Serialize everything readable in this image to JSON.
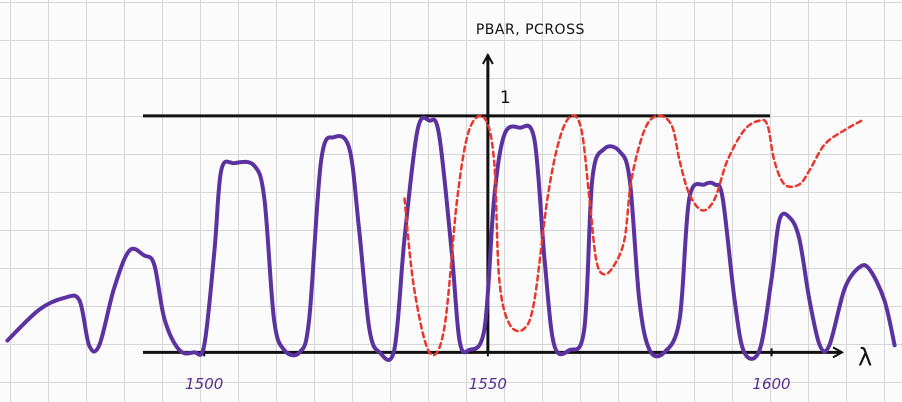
{
  "chart_data": {
    "type": "line",
    "y_label": "PBAR, PCROSS",
    "x_label": "λ",
    "xlim": [
      1464,
      1623
    ],
    "ylim": [
      -0.21,
      1.49
    ],
    "xticks": [
      1500,
      1550,
      1600
    ],
    "yticks": [
      1
    ],
    "series": [
      {
        "color": "#5b32a0",
        "style": "solid",
        "x": [
          1465.3,
          1470.9,
          1475.3,
          1478.0,
          1479.7,
          1481.5,
          1484.1,
          1486.8,
          1489.4,
          1491.2,
          1493.0,
          1495.6,
          1498.2,
          1500.0,
          1501.8,
          1503.0,
          1505.3,
          1508.8,
          1510.6,
          1512.3,
          1514.1,
          1516.8,
          1518.5,
          1520.6,
          1522.9,
          1525.6,
          1527.3,
          1529.1,
          1530.9,
          1533.5,
          1535.3,
          1537.6,
          1539.7,
          1541.4,
          1543.6,
          1545.0,
          1546.7,
          1549.4,
          1551.1,
          1552.9,
          1555.6,
          1558.2,
          1560.0,
          1561.7,
          1564.4,
          1567.0,
          1568.4,
          1570.5,
          1573.2,
          1575.0,
          1576.7,
          1578.5,
          1581.1,
          1583.8,
          1585.5,
          1588.2,
          1590.0,
          1591.4,
          1593.5,
          1595.2,
          1597.9,
          1600.0,
          1601.4,
          1603.2,
          1604.9,
          1606.7,
          1608.5,
          1610.2,
          1612.9,
          1615.5,
          1617.3,
          1619.9,
          1621.7
        ],
        "values": [
          0.05,
          0.18,
          0.23,
          0.22,
          0.03,
          0.03,
          0.27,
          0.43,
          0.41,
          0.37,
          0.14,
          0.01,
          0.0,
          0.03,
          0.43,
          0.77,
          0.8,
          0.79,
          0.65,
          0.14,
          0.01,
          0.0,
          0.14,
          0.81,
          0.91,
          0.86,
          0.52,
          0.1,
          0.0,
          0.01,
          0.48,
          0.94,
          0.98,
          0.92,
          0.43,
          0.05,
          0.01,
          0.1,
          0.65,
          0.92,
          0.95,
          0.9,
          0.39,
          0.03,
          0.01,
          0.1,
          0.73,
          0.86,
          0.85,
          0.73,
          0.22,
          0.01,
          0.0,
          0.14,
          0.65,
          0.71,
          0.71,
          0.65,
          0.22,
          0.0,
          0.01,
          0.31,
          0.56,
          0.57,
          0.48,
          0.22,
          0.03,
          0.03,
          0.27,
          0.36,
          0.35,
          0.22,
          0.03
        ]
      },
      {
        "color": "#e8382e",
        "style": "dashed",
        "x": [
          1535.3,
          1537.0,
          1539.7,
          1542.3,
          1544.6,
          1546.7,
          1549.4,
          1551.1,
          1552.0,
          1553.8,
          1556.4,
          1558.2,
          1560.5,
          1562.6,
          1564.7,
          1566.5,
          1567.9,
          1569.1,
          1570.5,
          1572.3,
          1574.1,
          1575.3,
          1577.6,
          1579.9,
          1582.4,
          1583.8,
          1585.5,
          1587.8,
          1590.0,
          1592.2,
          1595.2,
          1597.9,
          1599.3,
          1600.5,
          1602.3,
          1604.9,
          1606.7,
          1609.4,
          1612.9,
          1615.9
        ],
        "values": [
          0.65,
          0.27,
          0.0,
          0.1,
          0.65,
          0.94,
          0.99,
          0.81,
          0.31,
          0.12,
          0.1,
          0.22,
          0.65,
          0.9,
          1.0,
          0.94,
          0.65,
          0.39,
          0.33,
          0.37,
          0.48,
          0.73,
          0.94,
          1.0,
          0.96,
          0.81,
          0.67,
          0.6,
          0.65,
          0.81,
          0.94,
          0.98,
          0.96,
          0.81,
          0.71,
          0.71,
          0.77,
          0.88,
          0.94,
          0.98
        ]
      }
    ]
  }
}
